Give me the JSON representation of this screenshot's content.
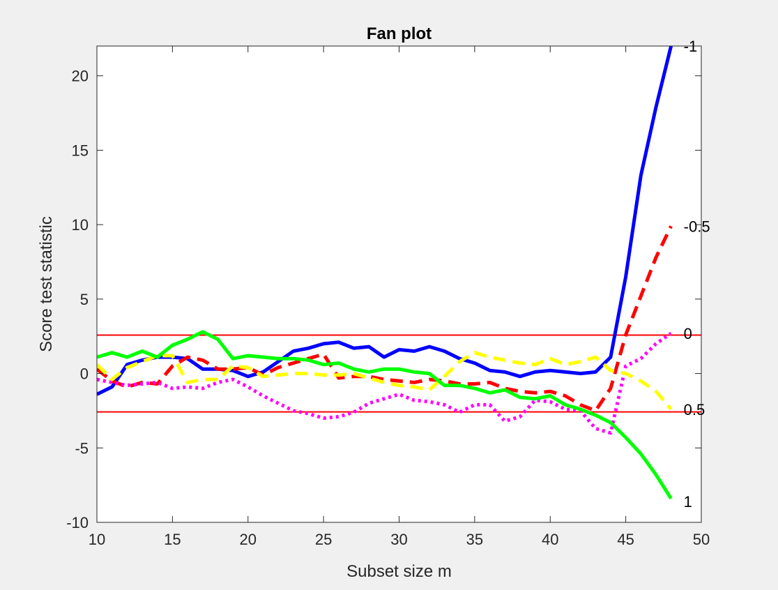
{
  "chart_data": {
    "type": "line",
    "title": "Fan plot",
    "xlabel": "Subset size m",
    "ylabel": "Score test statistic",
    "xlim": [
      10,
      50
    ],
    "ylim": [
      -10,
      22
    ],
    "xticks": [
      10,
      15,
      20,
      25,
      30,
      35,
      40,
      45,
      50
    ],
    "yticks": [
      -10,
      -5,
      0,
      5,
      10,
      15,
      20
    ],
    "grid": false,
    "legend": "none",
    "bands": [
      2.58,
      -2.58
    ],
    "band_color": "#ff0000",
    "series": [
      {
        "name": "-1",
        "color": "#0000ff",
        "style": "solid",
        "x": [
          10,
          11,
          12,
          13,
          14,
          15,
          16,
          17,
          18,
          19,
          20,
          21,
          22,
          23,
          24,
          25,
          26,
          27,
          28,
          29,
          30,
          31,
          32,
          33,
          34,
          35,
          36,
          37,
          38,
          39,
          40,
          41,
          42,
          43,
          44,
          45,
          46,
          47,
          48
        ],
        "y": [
          -1.4,
          -0.9,
          0.6,
          0.9,
          1.1,
          1.1,
          1.0,
          0.3,
          0.3,
          0.2,
          -0.2,
          0.1,
          0.8,
          1.5,
          1.7,
          2.0,
          2.1,
          1.7,
          1.8,
          1.1,
          1.6,
          1.5,
          1.8,
          1.5,
          1.0,
          0.7,
          0.2,
          0.1,
          -0.2,
          0.1,
          0.2,
          0.1,
          0.0,
          0.1,
          1.1,
          6.5,
          13.3,
          17.9,
          22.0
        ]
      },
      {
        "name": "-0.5",
        "color": "#ff0000",
        "style": "dashed",
        "x": [
          10,
          11,
          12,
          13,
          14,
          15,
          16,
          17,
          18,
          19,
          20,
          21,
          22,
          23,
          24,
          25,
          26,
          27,
          28,
          29,
          30,
          31,
          32,
          33,
          34,
          35,
          36,
          37,
          38,
          39,
          40,
          41,
          42,
          43,
          44,
          45,
          46,
          47,
          48
        ],
        "y": [
          0.3,
          -0.5,
          -0.9,
          -0.6,
          -0.7,
          0.5,
          1.1,
          0.9,
          0.3,
          0.3,
          0.4,
          -0.1,
          0.4,
          0.7,
          1.0,
          1.3,
          -0.3,
          -0.2,
          -0.2,
          -0.4,
          -0.5,
          -0.6,
          -0.4,
          -0.5,
          -0.7,
          -0.7,
          -0.6,
          -1.0,
          -1.2,
          -1.3,
          -1.2,
          -1.5,
          -2.1,
          -2.5,
          -1.0,
          2.6,
          5.2,
          7.8,
          9.9
        ]
      },
      {
        "name": "0",
        "color": "#ff00ff",
        "style": "dotted",
        "x": [
          10,
          11,
          12,
          13,
          14,
          15,
          16,
          17,
          18,
          19,
          20,
          21,
          22,
          23,
          24,
          25,
          26,
          27,
          28,
          29,
          30,
          31,
          32,
          33,
          34,
          35,
          36,
          37,
          38,
          39,
          40,
          41,
          42,
          43,
          44,
          45,
          46,
          47,
          48
        ],
        "y": [
          -0.4,
          -0.6,
          -0.8,
          -0.7,
          -0.6,
          -1.0,
          -0.9,
          -1.0,
          -0.6,
          -0.4,
          -0.9,
          -1.5,
          -2.0,
          -2.5,
          -2.7,
          -3.0,
          -2.9,
          -2.6,
          -2.0,
          -1.7,
          -1.4,
          -1.8,
          -1.9,
          -2.1,
          -2.6,
          -2.1,
          -2.1,
          -3.2,
          -2.9,
          -1.8,
          -1.9,
          -2.4,
          -2.5,
          -3.7,
          -4.0,
          0.5,
          1.0,
          2.0,
          2.7
        ]
      },
      {
        "name": "0.5",
        "color": "#ffff00",
        "style": "dashed",
        "x": [
          10,
          11,
          12,
          13,
          14,
          15,
          16,
          17,
          18,
          19,
          20,
          21,
          22,
          23,
          24,
          25,
          26,
          27,
          28,
          29,
          30,
          31,
          32,
          33,
          34,
          35,
          36,
          37,
          38,
          39,
          40,
          41,
          42,
          43,
          44,
          45,
          46,
          47,
          48
        ],
        "y": [
          0.6,
          -0.4,
          0.4,
          0.8,
          1.2,
          1.2,
          -0.6,
          -0.4,
          -0.4,
          0.5,
          0.4,
          -0.2,
          -0.1,
          0.0,
          0.0,
          -0.1,
          -0.1,
          0.0,
          -0.3,
          -0.6,
          -0.8,
          -0.9,
          -1.1,
          -0.2,
          0.8,
          1.4,
          1.1,
          0.9,
          0.7,
          0.6,
          1.0,
          0.6,
          0.8,
          1.1,
          0.2,
          0.0,
          -0.5,
          -1.2,
          -2.4
        ]
      },
      {
        "name": "1",
        "color": "#00ff00",
        "style": "solid",
        "x": [
          10,
          11,
          12,
          13,
          14,
          15,
          16,
          17,
          18,
          19,
          20,
          21,
          22,
          23,
          24,
          25,
          26,
          27,
          28,
          29,
          30,
          31,
          32,
          33,
          34,
          35,
          36,
          37,
          38,
          39,
          40,
          41,
          42,
          43,
          44,
          45,
          46,
          47,
          48
        ],
        "y": [
          1.1,
          1.4,
          1.1,
          1.5,
          1.1,
          1.9,
          2.3,
          2.8,
          2.3,
          1.0,
          1.2,
          1.1,
          1.0,
          1.0,
          0.9,
          0.6,
          0.7,
          0.3,
          0.1,
          0.3,
          0.3,
          0.1,
          0.0,
          -0.8,
          -0.8,
          -1.0,
          -1.3,
          -1.1,
          -1.6,
          -1.7,
          -1.5,
          -2.1,
          -2.4,
          -2.8,
          -3.3,
          -4.3,
          -5.4,
          -6.8,
          -8.4
        ]
      }
    ]
  }
}
